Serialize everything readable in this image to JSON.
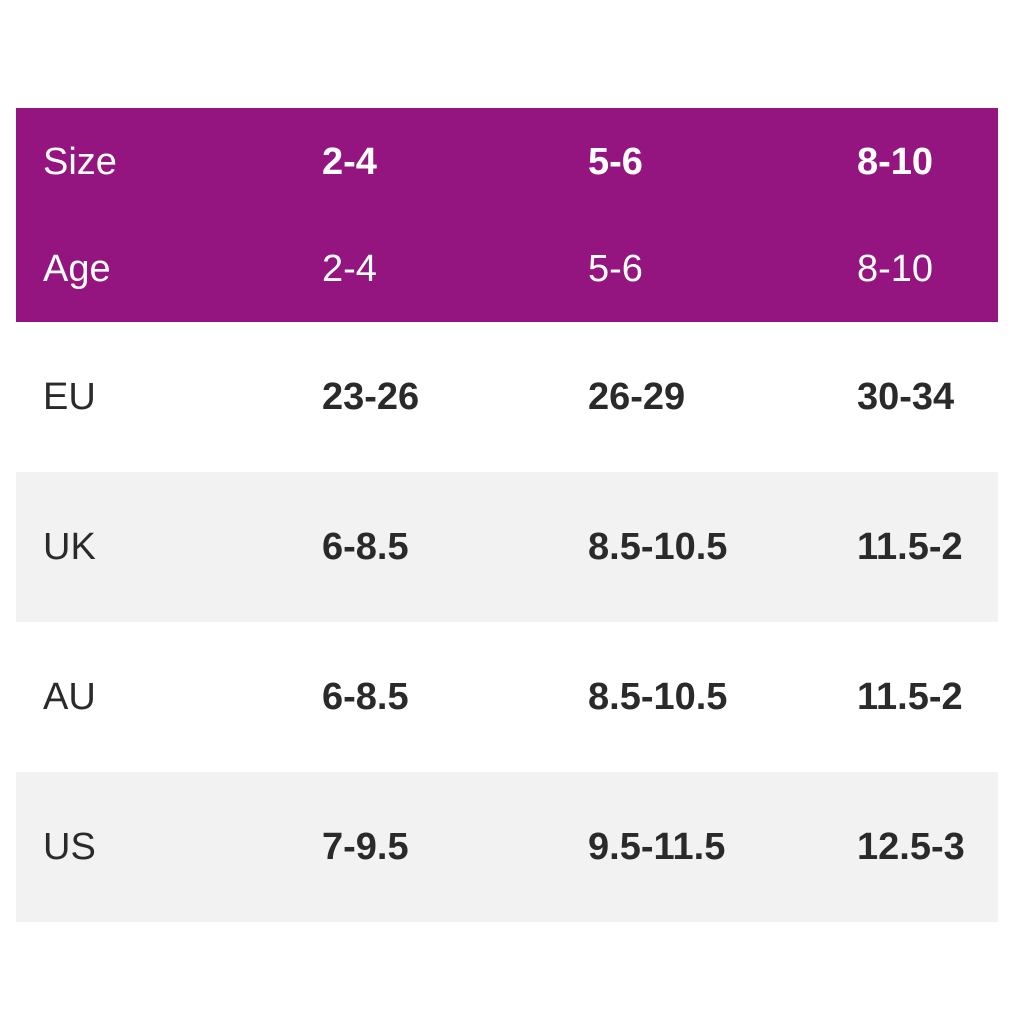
{
  "chart_data": {
    "type": "table",
    "columns": [
      "Size",
      "2-4",
      "5-6",
      "8-10"
    ],
    "rows": [
      [
        "Age",
        "2-4",
        "5-6",
        "8-10"
      ],
      [
        "EU",
        "23-26",
        "26-29",
        "30-34"
      ],
      [
        "UK",
        "6-8.5",
        "8.5-10.5",
        "11.5-2"
      ],
      [
        "AU",
        "6-8.5",
        "8.5-10.5",
        "11.5-2"
      ],
      [
        "US",
        "7-9.5",
        "9.5-11.5",
        "12.5-3"
      ]
    ],
    "layout": {
      "header_rows": [
        "Size",
        "Age"
      ],
      "zebra_striping": true,
      "value_alignment": "left",
      "grid": false,
      "legend": "none"
    }
  },
  "colors": {
    "header_bg": "#941480",
    "header_text": "#ffffff",
    "row_bg": "#ffffff",
    "row_alt_bg": "#f2f2f2",
    "body_text": "#2a2a2a"
  }
}
